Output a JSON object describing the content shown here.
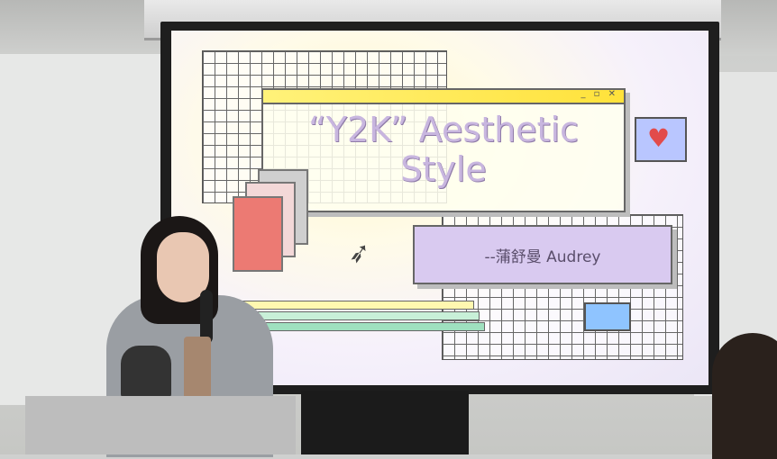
{
  "slide": {
    "title_line1": "“Y2K” Aesthetic",
    "title_line2": "Style",
    "author": "--蒲舒曼 Audrey",
    "window_controls": "_ ▫ ✕",
    "icons": [
      "heart-icon",
      "cursor-icon",
      "chat-bubble-icon",
      "document-icon"
    ]
  },
  "colors": {
    "title_text": "#c8b6df",
    "author_box": "#d9caf0",
    "titlebar": "#ffe23a",
    "heart": "#e24b4b"
  }
}
